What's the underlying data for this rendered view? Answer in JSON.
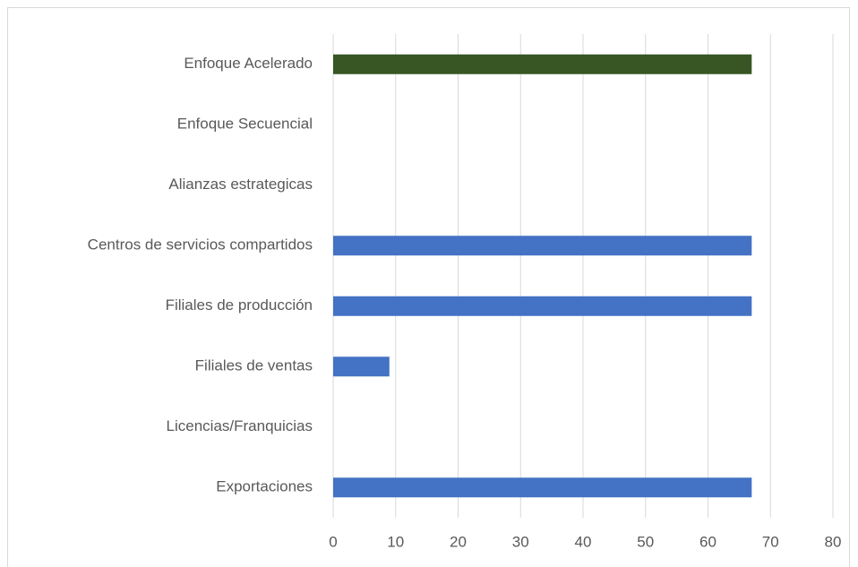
{
  "chart_data": {
    "type": "bar",
    "orientation": "horizontal",
    "categories": [
      "Enfoque Acelerado",
      "Enfoque Secuencial",
      "Alianzas estrategicas",
      "Centros de servicios compartidos",
      "Filiales de producción",
      "Filiales de ventas",
      "Licencias/Franquicias",
      "Exportaciones"
    ],
    "values": [
      67,
      0,
      0,
      67,
      67,
      9,
      0,
      67
    ],
    "colors": [
      "#375623",
      "#4472c4",
      "#4472c4",
      "#4472c4",
      "#4472c4",
      "#4472c4",
      "#4472c4",
      "#4472c4"
    ],
    "xlim": [
      0,
      80
    ],
    "xticks": [
      0,
      10,
      20,
      30,
      40,
      50,
      60,
      70,
      80
    ],
    "grid": true
  }
}
